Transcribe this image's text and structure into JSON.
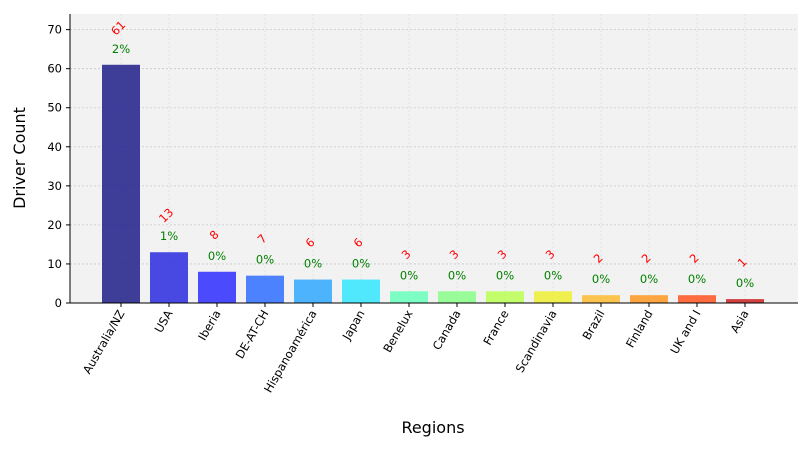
{
  "chart_data": {
    "type": "bar",
    "xlabel": "Regions",
    "ylabel": "Driver Count",
    "ylim": [
      0,
      74
    ],
    "yticks": [
      0,
      10,
      20,
      30,
      40,
      50,
      60,
      70
    ],
    "grid": true,
    "categories": [
      "Australia/NZ",
      "USA",
      "Iberia",
      "DE-AT-CH",
      "Hispanoamérica",
      "Japan",
      "Benelux",
      "Canada",
      "France",
      "Scandinavia",
      "Brazil",
      "Finland",
      "UK and I",
      "Asia"
    ],
    "values": [
      61,
      13,
      8,
      7,
      6,
      6,
      3,
      3,
      3,
      3,
      2,
      2,
      2,
      1
    ],
    "count_labels": [
      "61",
      "13",
      "8",
      "7",
      "6",
      "6",
      "3",
      "3",
      "3",
      "3",
      "2",
      "2",
      "2",
      "1"
    ],
    "percent_labels": [
      "2%",
      "1%",
      "0%",
      "0%",
      "0%",
      "0%",
      "0%",
      "0%",
      "0%",
      "0%",
      "0%",
      "0%",
      "0%",
      "0%"
    ],
    "colors": [
      "#1f1f8a",
      "#2a2ae0",
      "#2e2eff",
      "#2f6fff",
      "#30a8ff",
      "#33e6ff",
      "#66ffbb",
      "#88ff88",
      "#bbff55",
      "#eeee33",
      "#ffbb33",
      "#ff9922",
      "#ff5522",
      "#cc2222"
    ]
  }
}
